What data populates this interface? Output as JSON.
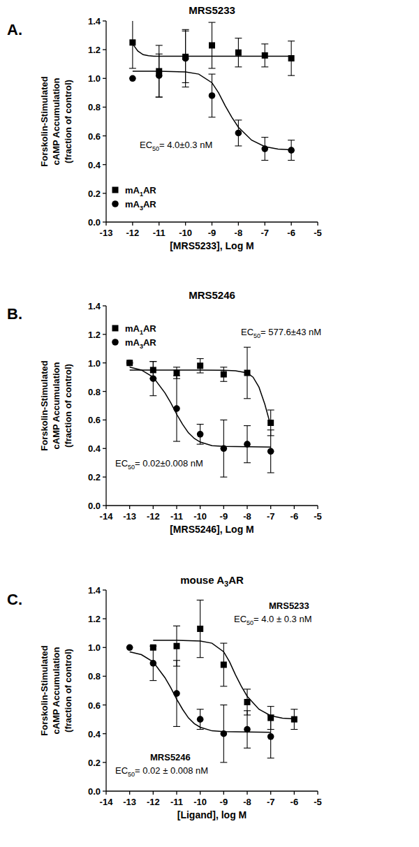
{
  "chart_data": [
    {
      "type": "scatter",
      "panel_label": "A.",
      "title": "MRS5233",
      "xlabel": "[MRS5233], Log M",
      "ylabel": [
        "Forskolin-Stimulated",
        "cAMP Accumulation",
        "(fraction of control)"
      ],
      "xlim": [
        -13,
        -5
      ],
      "xticks": [
        -13,
        -12,
        -11,
        -10,
        -9,
        -8,
        -7,
        -6,
        -5
      ],
      "ylim": [
        0,
        1.4
      ],
      "yticks": [
        {
          "value": 0,
          "label": "0.0"
        },
        0.2,
        0.4,
        0.6,
        0.8,
        {
          "value": 1,
          "label": "1.0"
        },
        1.2,
        1.4
      ],
      "legend": "lower left",
      "annotations": [
        "EC50= 4.0±0.3 nM"
      ],
      "series": [
        {
          "name": "mA1AR",
          "color": "#000000",
          "marker": "square",
          "x": [
            -12,
            -11,
            -10,
            -9,
            -8,
            -7,
            -6
          ],
          "values": [
            1.25,
            1.05,
            1.15,
            1.23,
            1.18,
            1.16,
            1.14
          ],
          "errors": [
            0.18,
            0.18,
            0.18,
            0.16,
            0.1,
            0.08,
            0.12
          ],
          "fit": {
            "x": [
              -12,
              -11.8,
              -11.6,
              -11.4,
              -11.2,
              -11,
              -10,
              -9,
              -8,
              -7,
              -6
            ],
            "values": [
              1.24,
              1.19,
              1.165,
              1.158,
              1.155,
              1.155,
              1.155,
              1.155,
              1.155,
              1.155,
              1.155
            ]
          }
        },
        {
          "name": "mA3AR",
          "color": "#000000",
          "marker": "circle",
          "x": [
            -12,
            -11,
            -10,
            -9,
            -8,
            -7,
            -6
          ],
          "values": [
            1.0,
            1.02,
            1.14,
            0.88,
            0.62,
            0.51,
            0.5
          ],
          "errors": [
            0,
            0.15,
            0.2,
            0.15,
            0.09,
            0.08,
            0.07
          ],
          "fit": {
            "x": [
              -12,
              -11,
              -10,
              -9.5,
              -9,
              -8.75,
              -8.5,
              -8.25,
              -8,
              -7.5,
              -7,
              -6.5,
              -6
            ],
            "values": [
              1.05,
              1.05,
              1.045,
              1.03,
              0.97,
              0.9,
              0.81,
              0.73,
              0.66,
              0.57,
              0.525,
              0.508,
              0.503
            ]
          }
        }
      ]
    },
    {
      "type": "scatter",
      "panel_label": "B.",
      "title": "MRS5246",
      "xlabel": "[MRS5246], Log M",
      "ylabel": [
        "Forskolin-Stimulated",
        "cAMP Accumulation",
        "(fraction of control)"
      ],
      "xlim": [
        -14,
        -5
      ],
      "xticks": [
        -14,
        -13,
        -12,
        -11,
        -10,
        -9,
        -8,
        -7,
        -6,
        -5
      ],
      "ylim": [
        0,
        1.4
      ],
      "yticks": [
        {
          "value": 0,
          "label": "0.0"
        },
        0.2,
        0.4,
        0.6,
        0.8,
        {
          "value": 1,
          "label": "1.0"
        },
        1.2,
        1.4
      ],
      "legend": "upper left",
      "annotations": [
        "EC50= 577.6±43 nM",
        "EC50= 0.02±0.008 nM"
      ],
      "series": [
        {
          "name": "mA1AR",
          "color": "#000000",
          "marker": "square",
          "x": [
            -13,
            -12,
            -11,
            -10,
            -9,
            -8,
            -7
          ],
          "values": [
            1.0,
            0.95,
            0.93,
            0.98,
            0.92,
            0.93,
            0.58
          ],
          "errors": [
            0,
            0.06,
            0.04,
            0.05,
            0.05,
            0.18,
            0.09
          ],
          "fit": {
            "x": [
              -13,
              -12,
              -11,
              -10,
              -9,
              -8.5,
              -8,
              -7.75,
              -7.5,
              -7.25,
              -7
            ],
            "values": [
              0.95,
              0.95,
              0.95,
              0.95,
              0.948,
              0.945,
              0.93,
              0.9,
              0.83,
              0.71,
              0.56
            ]
          }
        },
        {
          "name": "mA3AR",
          "color": "#000000",
          "marker": "circle",
          "x": [
            -13,
            -12,
            -11,
            -10,
            -9,
            -8,
            -7
          ],
          "values": [
            1.0,
            0.89,
            0.68,
            0.5,
            0.4,
            0.43,
            0.38
          ],
          "errors": [
            0,
            0.12,
            0.23,
            0.07,
            0.2,
            0.13,
            0.15
          ],
          "fit": {
            "x": [
              -13,
              -12.5,
              -12,
              -11.5,
              -11.25,
              -11,
              -10.75,
              -10.5,
              -10.25,
              -10,
              -9.5,
              -9,
              -8,
              -7
            ],
            "values": [
              0.97,
              0.95,
              0.9,
              0.79,
              0.72,
              0.64,
              0.57,
              0.51,
              0.47,
              0.445,
              0.42,
              0.415,
              0.412,
              0.41
            ]
          }
        }
      ]
    },
    {
      "type": "scatter",
      "panel_label": "C.",
      "title": "mouse A3AR",
      "xlabel": "[Ligand], log M",
      "ylabel": [
        "Forskolin-Stimulated",
        "cAMP Accumulation",
        "(fraction of control)"
      ],
      "xlim": [
        -14,
        -5
      ],
      "xticks": [
        -14,
        -13,
        -12,
        -11,
        -10,
        -9,
        -8,
        -7,
        -6,
        -5
      ],
      "ylim": [
        0,
        1.4
      ],
      "yticks": [
        {
          "value": 0,
          "label": "0.0"
        },
        0.2,
        0.4,
        0.6,
        0.8,
        {
          "value": 1,
          "label": "1.0"
        },
        1.2,
        1.4
      ],
      "annotations": [
        "EC50= 4.0 ± 0.3 nM",
        "EC50= 0.02 ± 0.008 nM"
      ],
      "series": [
        {
          "name": "MRS5233",
          "color": "#000000",
          "marker": "square",
          "x": [
            -12,
            -11,
            -10,
            -9,
            -8,
            -7,
            -6
          ],
          "values": [
            1.0,
            1.01,
            1.13,
            0.88,
            0.62,
            0.51,
            0.5
          ],
          "errors": [
            0,
            0.14,
            0.2,
            0.15,
            0.09,
            0.08,
            0.07
          ],
          "fit": {
            "x": [
              -12,
              -11,
              -10,
              -9.5,
              -9,
              -8.75,
              -8.5,
              -8.25,
              -8,
              -7.5,
              -7,
              -6.5,
              -6
            ],
            "values": [
              1.05,
              1.05,
              1.045,
              1.03,
              0.97,
              0.9,
              0.81,
              0.73,
              0.66,
              0.57,
              0.525,
              0.508,
              0.503
            ]
          }
        },
        {
          "name": "MRS5246",
          "color": "#000000",
          "marker": "circle",
          "x": [
            -13,
            -12,
            -11,
            -10,
            -9,
            -8,
            -7
          ],
          "values": [
            1.0,
            0.89,
            0.68,
            0.5,
            0.4,
            0.43,
            0.38
          ],
          "errors": [
            0,
            0.12,
            0.23,
            0.07,
            0.2,
            0.13,
            0.15
          ],
          "fit": {
            "x": [
              -13,
              -12.5,
              -12,
              -11.5,
              -11.25,
              -11,
              -10.75,
              -10.5,
              -10.25,
              -10,
              -9.5,
              -9,
              -8,
              -7
            ],
            "values": [
              0.97,
              0.95,
              0.9,
              0.79,
              0.72,
              0.64,
              0.57,
              0.51,
              0.47,
              0.445,
              0.42,
              0.415,
              0.412,
              0.41
            ]
          }
        }
      ]
    }
  ]
}
